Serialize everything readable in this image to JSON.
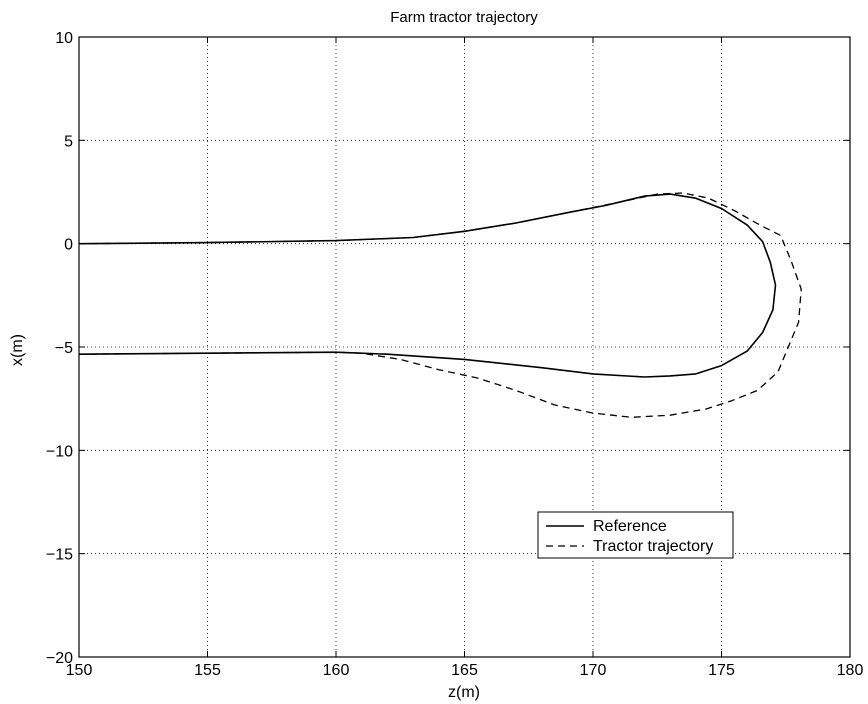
{
  "chart_data": {
    "type": "line",
    "title": "Farm tractor trajectory",
    "xlabel": "z(m)",
    "ylabel": "x(m)",
    "xlim": [
      150,
      180
    ],
    "ylim": [
      -20,
      10
    ],
    "xticks": [
      150,
      155,
      160,
      165,
      170,
      175,
      180
    ],
    "yticks": [
      -20,
      -15,
      -10,
      -5,
      0,
      5,
      10
    ],
    "grid": true,
    "legend_position": "lower-right",
    "series": [
      {
        "name": "Reference",
        "style": "solid",
        "color": "#000000",
        "points": [
          [
            150,
            0.0
          ],
          [
            155,
            0.05
          ],
          [
            160,
            0.15
          ],
          [
            163,
            0.3
          ],
          [
            165,
            0.6
          ],
          [
            167,
            1.0
          ],
          [
            169,
            1.5
          ],
          [
            170.5,
            1.85
          ],
          [
            172,
            2.3
          ],
          [
            173,
            2.4
          ],
          [
            174,
            2.2
          ],
          [
            175,
            1.7
          ],
          [
            176,
            0.9
          ],
          [
            176.6,
            0.1
          ],
          [
            176.9,
            -0.9
          ],
          [
            177.1,
            -2.0
          ],
          [
            177.0,
            -3.2
          ],
          [
            176.6,
            -4.3
          ],
          [
            176.0,
            -5.2
          ],
          [
            175,
            -5.9
          ],
          [
            174,
            -6.3
          ],
          [
            173,
            -6.4
          ],
          [
            172,
            -6.45
          ],
          [
            170,
            -6.3
          ],
          [
            168,
            -6.0
          ],
          [
            165,
            -5.6
          ],
          [
            162,
            -5.35
          ],
          [
            160,
            -5.25
          ],
          [
            155,
            -5.3
          ],
          [
            150,
            -5.35
          ]
        ]
      },
      {
        "name": "Tractor trajectory",
        "style": "dashed",
        "color": "#000000",
        "points": [
          [
            150,
            0.0
          ],
          [
            155,
            0.05
          ],
          [
            160,
            0.15
          ],
          [
            163,
            0.3
          ],
          [
            165,
            0.6
          ],
          [
            167,
            1.0
          ],
          [
            169,
            1.5
          ],
          [
            171,
            2.0
          ],
          [
            172.5,
            2.4
          ],
          [
            173.5,
            2.45
          ],
          [
            174.5,
            2.2
          ],
          [
            175.5,
            1.6
          ],
          [
            176.5,
            0.9
          ],
          [
            177.3,
            0.4
          ],
          [
            177.7,
            -0.8
          ],
          [
            178.1,
            -2.2
          ],
          [
            178.0,
            -3.8
          ],
          [
            177.6,
            -5.0
          ],
          [
            177.2,
            -6.2
          ],
          [
            176.4,
            -7.1
          ],
          [
            175.4,
            -7.6
          ],
          [
            174.4,
            -8.0
          ],
          [
            173,
            -8.3
          ],
          [
            171.5,
            -8.4
          ],
          [
            170,
            -8.2
          ],
          [
            168.5,
            -7.8
          ],
          [
            167,
            -7.1
          ],
          [
            165.5,
            -6.5
          ],
          [
            164,
            -6.1
          ],
          [
            162.5,
            -5.6
          ],
          [
            161,
            -5.3
          ],
          [
            160,
            -5.25
          ],
          [
            155,
            -5.3
          ],
          [
            150,
            -5.35
          ]
        ]
      }
    ]
  }
}
